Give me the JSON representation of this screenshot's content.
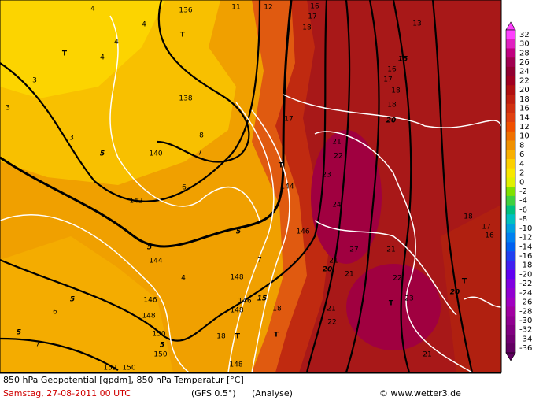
{
  "map": {
    "labels": [
      "4",
      "136",
      "11",
      "12",
      "16",
      "17",
      "18",
      "13",
      "4",
      "T",
      "4",
      "T",
      "4",
      "3",
      "3",
      "3",
      "138",
      "15",
      "16",
      "17",
      "18",
      "18",
      "20",
      "17",
      "5",
      "140",
      "8",
      "21",
      "22",
      "7",
      "T",
      "23",
      "144",
      "6",
      "142",
      "24",
      "18",
      "17",
      "16",
      "5",
      "146",
      "5",
      "144",
      "21",
      "27",
      "21",
      "7",
      "20",
      "21",
      "148",
      "4",
      "22",
      "T",
      "20",
      "5",
      "146",
      "15",
      "146",
      "148",
      "T",
      "23",
      "18",
      "6",
      "21",
      "148",
      "22",
      "5",
      "150",
      "18",
      "T",
      "T",
      "5",
      "7",
      "150",
      "21",
      "152",
      "150",
      "148"
    ]
  },
  "legend": {
    "labels": [
      "32",
      "30",
      "28",
      "26",
      "24",
      "22",
      "20",
      "18",
      "16",
      "14",
      "12",
      "10",
      "8",
      "6",
      "4",
      "2",
      "0",
      "-2",
      "-4",
      "-6",
      "-8",
      "-10",
      "-12",
      "-14",
      "-16",
      "-18",
      "-20",
      "-22",
      "-24",
      "-26",
      "-28",
      "-30",
      "-32",
      "-34",
      "-36"
    ],
    "colors": [
      "#ff40ff",
      "#e020c0",
      "#c00080",
      "#a00050",
      "#900030",
      "#a00020",
      "#b01010",
      "#c02010",
      "#d03010",
      "#e04010",
      "#f05000",
      "#f07000",
      "#f09000",
      "#f8b000",
      "#fcd000",
      "#f8e800",
      "#e0f000",
      "#80e000",
      "#40d040",
      "#00c080",
      "#00c0c0",
      "#00a0e0",
      "#0080f0",
      "#0060f0",
      "#2040f0",
      "#4020f0",
      "#6000f0",
      "#8000e0",
      "#9000d0",
      "#a000c0",
      "#a000a0",
      "#900090",
      "#800080",
      "#700070",
      "#600060"
    ]
  },
  "footer": {
    "line1": "850 hPa Geopotential [gpdm], 850 hPa Temperatur [°C]",
    "date": "Samstag, 27-08-2011  00 UTC",
    "model": "(GFS 0.5°)",
    "run": "(Analyse)",
    "copyright": "© www.wetter3.de"
  }
}
